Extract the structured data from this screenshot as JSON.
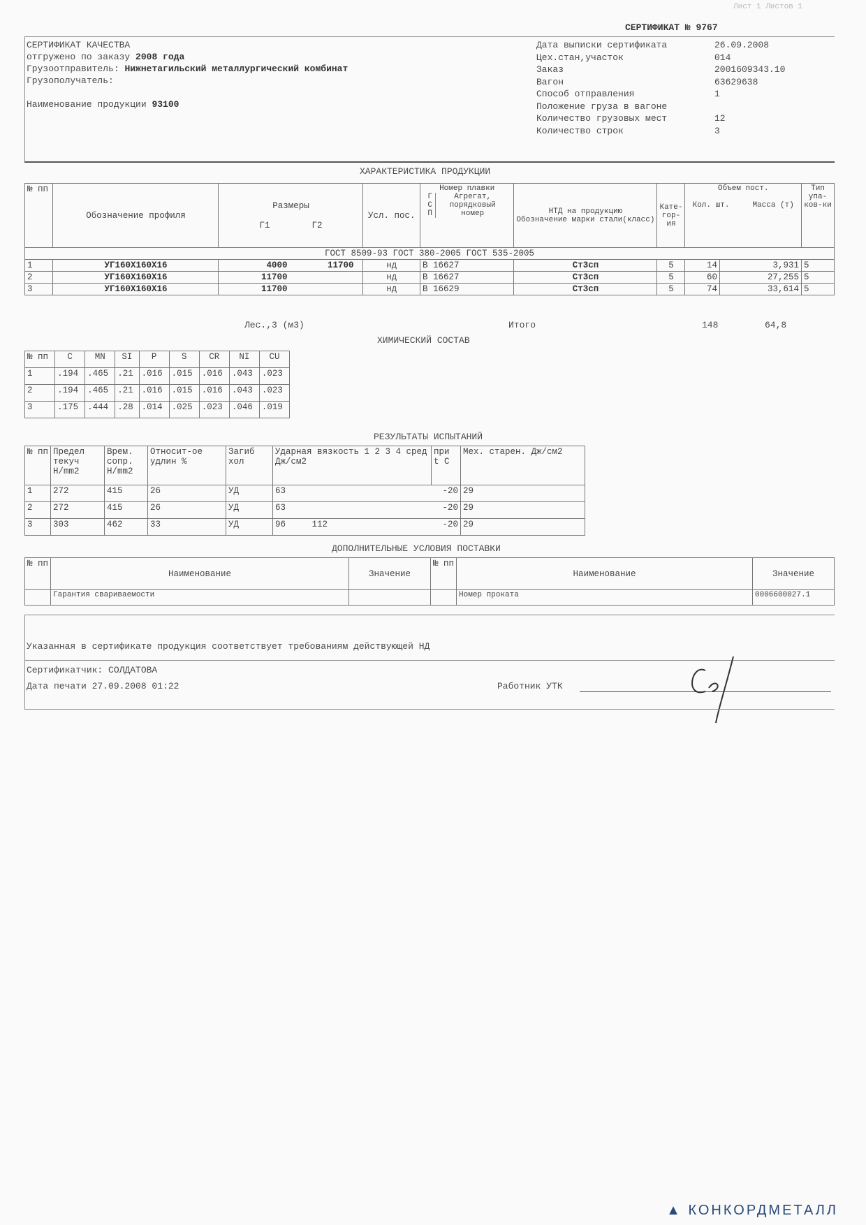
{
  "header": {
    "page_info": "Лист 1 Листов 1",
    "cert_number_label": "СЕРТИФИКАТ №",
    "cert_number": "9767",
    "left_lines": [
      {
        "label": "СЕРТИФИКАТ КАЧЕСТВА",
        "value": ""
      },
      {
        "label": "отгружено по заказу",
        "value": "2008 года"
      },
      {
        "label": "Грузоотправитель:",
        "value": "Нижнетагильский металлургический комбинат"
      },
      {
        "label": "Грузополучатель:",
        "value": ""
      },
      {
        "label": "Наименование продукции",
        "value": "93100"
      }
    ],
    "right_fields": [
      {
        "label": "Дата выписки сертификата",
        "value": "26.09.2008"
      },
      {
        "label": "Цех.стан,участок",
        "value": "014"
      },
      {
        "label": "Заказ",
        "value": "2001609343.10"
      },
      {
        "label": "Вагон",
        "value": "63629638"
      },
      {
        "label": "Способ отправления",
        "value": "1"
      },
      {
        "label": "Положение груза в вагоне",
        "value": ""
      },
      {
        "label": "Количество грузовых мест",
        "value": "12"
      },
      {
        "label": "Количество строк",
        "value": "3"
      }
    ]
  },
  "product": {
    "title": "ХАРАКТЕРИСТИКА ПРОДУКЦИИ",
    "h": {
      "num": "№ пп",
      "profile": "Обозначение профиля",
      "ntd": "НТД на продукцию",
      "sizes": "Размеры",
      "g1": "Г1",
      "g2": "Г2",
      "usl": "Усл. пос.",
      "melt": "Номер плавки",
      "gsp": "Г С П",
      "agg": "Агрегат, порядковый номер",
      "steel": "Обозначение марки стали(класс)",
      "cat": "Кате-гор-ия",
      "vol": "Объем пост.",
      "qty": "Кол. шт.",
      "mass": "Масса (т)",
      "pack": "Тип упа-ков-ки"
    },
    "standards": "ГОСТ 8509-93   ГОСТ 380-2005 ГОСТ 535-2005",
    "rows": [
      {
        "n": "1",
        "profile": "УГ160Х160Х16",
        "g1": "4000",
        "g2": "11700",
        "usl": "нд",
        "g": "В",
        "melt": "16627",
        "steel": "Ст3сп",
        "cat": "5",
        "qty": "14",
        "mass": "3,931",
        "pack": "5"
      },
      {
        "n": "2",
        "profile": "УГ160Х160Х16",
        "g1": "11700",
        "g2": "",
        "usl": "нд",
        "g": "В",
        "melt": "16627",
        "steel": "Ст3сп",
        "cat": "5",
        "qty": "60",
        "mass": "27,255",
        "pack": "5"
      },
      {
        "n": "3",
        "profile": "УГ160Х160Х16",
        "g1": "11700",
        "g2": "",
        "usl": "нд",
        "g": "В",
        "melt": "16629",
        "steel": "Ст3сп",
        "cat": "5",
        "qty": "74",
        "mass": "33,614",
        "pack": "5"
      }
    ],
    "wood_label": "Лес.,3 (м3)",
    "total_label": "Итого",
    "total_qty": "148",
    "total_mass": "64,8"
  },
  "chem": {
    "title": "ХИМИЧЕСКИЙ СОСТАВ",
    "headers": [
      "№ пп",
      "C",
      "MN",
      "SI",
      "P",
      "S",
      "CR",
      "NI",
      "CU"
    ],
    "rows": [
      [
        "1",
        ".194",
        ".465",
        ".21",
        ".016",
        ".015",
        ".016",
        ".043",
        ".023"
      ],
      [
        "2",
        ".194",
        ".465",
        ".21",
        ".016",
        ".015",
        ".016",
        ".043",
        ".023"
      ],
      [
        "3",
        ".175",
        ".444",
        ".28",
        ".014",
        ".025",
        ".023",
        ".046",
        ".019"
      ]
    ]
  },
  "tests": {
    "title": "РЕЗУЛЬТАТЫ ИСПЫТАНИЙ",
    "headers": [
      "№ пп",
      "Предел текуч Н/mm2",
      "Врем. сопр. Н/mm2",
      "Относит-ое удлин %",
      "Загиб хол",
      "Ударная вязкость  1  2  3  4  сред  Дж/см2",
      "при t С",
      "Мех. старен. Дж/см2"
    ],
    "rows": [
      [
        "1",
        "272",
        "415",
        "26",
        "УД",
        "63",
        "-20",
        "29"
      ],
      [
        "2",
        "272",
        "415",
        "26",
        "УД",
        "63",
        "-20",
        "29"
      ],
      [
        "3",
        "303",
        "462",
        "33",
        "УД",
        "96     112",
        "-20",
        "29"
      ]
    ]
  },
  "extra": {
    "title": "ДОПОЛНИТЕЛЬНЫЕ УСЛОВИЯ ПОСТАВКИ",
    "headers": [
      "№ пп",
      "Наименование",
      "Значение",
      "№ пп",
      "Наименование",
      "Значение"
    ],
    "row": [
      "",
      "Гарантия свариваемости",
      "",
      "",
      "Номер проката",
      "0006600027.1"
    ]
  },
  "footer": {
    "statement": "Указанная в сертификате продукция соответствует требованиям действующей НД",
    "certifier": "Сертификатчик:  СОЛДАТОВА",
    "print_date": "Дата печати 27.09.2008 01:22",
    "worker_label": "Работник УТК"
  },
  "logo": "КОНКОРДМЕТАЛЛ"
}
